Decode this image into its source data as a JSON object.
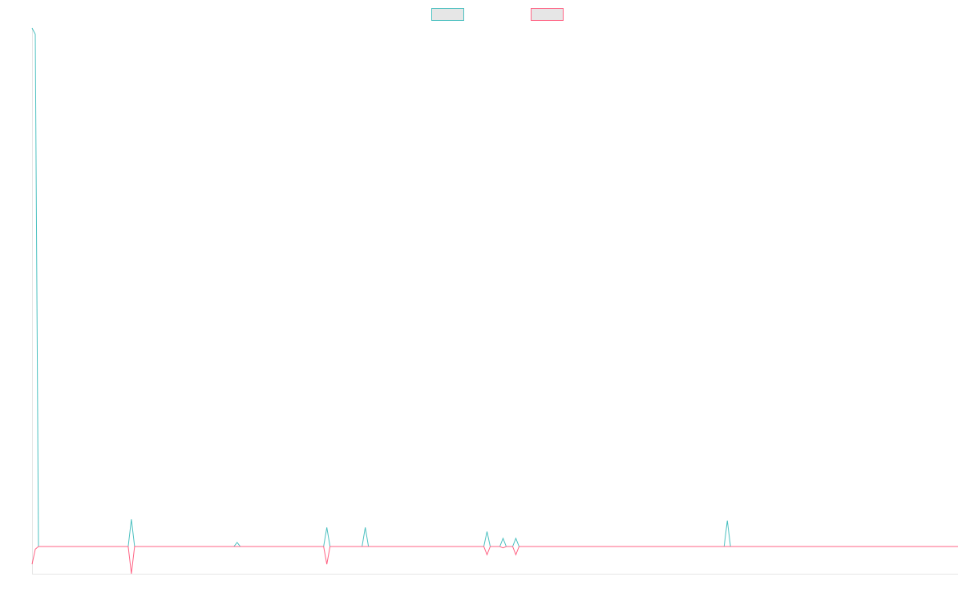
{
  "chart_data": {
    "type": "line",
    "x": [
      0,
      1,
      2,
      30,
      31,
      32,
      63,
      64,
      65,
      91,
      92,
      93,
      103,
      104,
      105,
      141,
      142,
      143,
      146,
      147,
      148,
      150,
      151,
      152,
      216,
      217,
      218,
      289
    ],
    "xlim": [
      0,
      289
    ],
    "ylim": [
      -1,
      19
    ],
    "series": [
      {
        "color": "#4bc0c0",
        "values": [
          19.03,
          18.8,
          0,
          0,
          1,
          0,
          0,
          0.15,
          0,
          0,
          0.7,
          0,
          0,
          0.7,
          0,
          0,
          0.55,
          0,
          0,
          0.3,
          0,
          0,
          0.3,
          0,
          0,
          0.95,
          0,
          0
        ]
      },
      {
        "color": "#ff6384",
        "values": [
          -0.65,
          -0.1,
          0,
          0,
          -1,
          0,
          0,
          0,
          0,
          0,
          -0.65,
          0,
          0,
          0,
          0,
          0,
          -0.3,
          0,
          0,
          -0.05,
          0,
          0,
          -0.3,
          0,
          0,
          0,
          0,
          0
        ]
      }
    ]
  }
}
